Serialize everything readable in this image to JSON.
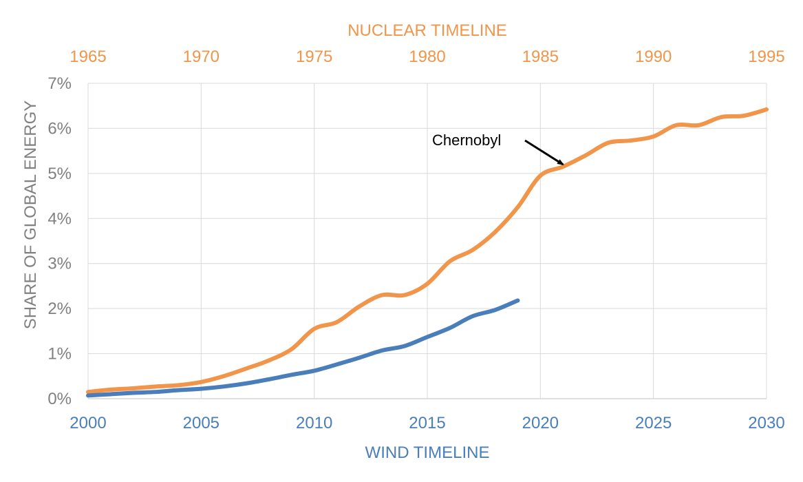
{
  "chart_data": {
    "type": "line",
    "top_axis": {
      "title": "NUCLEAR TIMELINE",
      "range": [
        1965,
        1995
      ],
      "ticks": [
        "1965",
        "1970",
        "1975",
        "1980",
        "1985",
        "1990",
        "1995"
      ],
      "color": "#F0954A"
    },
    "bottom_axis": {
      "title": "WIND TIMELINE",
      "range": [
        2000,
        2030
      ],
      "ticks": [
        "2000",
        "2005",
        "2010",
        "2015",
        "2020",
        "2025",
        "2030"
      ],
      "color": "#4A7EBB"
    },
    "y_axis": {
      "title": "SHARE OF GLOBAL ENERGY",
      "range": [
        0,
        7
      ],
      "ticks": [
        "0%",
        "1%",
        "2%",
        "3%",
        "4%",
        "5%",
        "6%",
        "7%"
      ]
    },
    "grid": true,
    "series": [
      {
        "axis": "top",
        "color": "#F0954A",
        "x": [
          1965,
          1966,
          1967,
          1968,
          1969,
          1970,
          1971,
          1972,
          1973,
          1974,
          1975,
          1976,
          1977,
          1978,
          1979,
          1980,
          1981,
          1982,
          1983,
          1984,
          1985,
          1986,
          1987,
          1988,
          1989,
          1990,
          1991,
          1992,
          1993,
          1994,
          1995
        ],
        "values": [
          0.15,
          0.2,
          0.23,
          0.27,
          0.3,
          0.37,
          0.5,
          0.67,
          0.85,
          1.1,
          1.55,
          1.7,
          2.05,
          2.3,
          2.3,
          2.55,
          3.05,
          3.3,
          3.7,
          4.25,
          4.95,
          5.15,
          5.4,
          5.68,
          5.73,
          5.82,
          6.07,
          6.07,
          6.25,
          6.28,
          6.42
        ]
      },
      {
        "axis": "bottom",
        "color": "#4A7EBB",
        "x": [
          2000,
          2001,
          2002,
          2003,
          2004,
          2005,
          2006,
          2007,
          2008,
          2009,
          2010,
          2011,
          2012,
          2013,
          2014,
          2015,
          2016,
          2017,
          2018,
          2019
        ],
        "values": [
          0.07,
          0.1,
          0.13,
          0.15,
          0.19,
          0.22,
          0.27,
          0.34,
          0.43,
          0.53,
          0.62,
          0.76,
          0.91,
          1.07,
          1.17,
          1.37,
          1.57,
          1.83,
          1.97,
          2.18
        ]
      }
    ],
    "annotation": {
      "text": "Chernobyl",
      "arrow_to": {
        "axis": "top",
        "x": 1986,
        "y": 5.2
      }
    }
  }
}
